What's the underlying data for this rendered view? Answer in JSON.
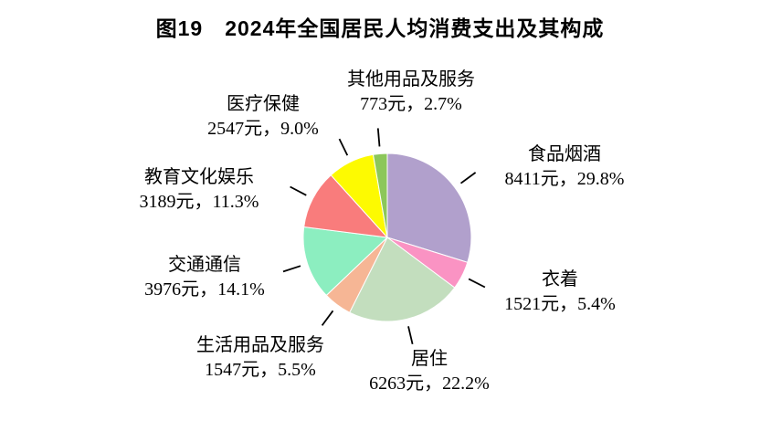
{
  "title": "图19　2024年全国居民人均消费支出及其构成",
  "chart_data": {
    "type": "pie",
    "title": "图19　2024年全国居民人均消费支出及其构成",
    "unit": "元",
    "start_angle_deg": 0,
    "direction": "clockwise",
    "total_percent": 100.0,
    "slices": [
      {
        "key": "food-tobacco-alcohol",
        "name": "食品烟酒",
        "value_yuan": 8411,
        "percent": 29.8,
        "detail": "8411元，29.8%",
        "color": "#b1a0cc"
      },
      {
        "key": "clothing",
        "name": "衣着",
        "value_yuan": 1521,
        "percent": 5.4,
        "detail": "1521元，5.4%",
        "color": "#fa93c3"
      },
      {
        "key": "housing",
        "name": "居住",
        "value_yuan": 6263,
        "percent": 22.2,
        "detail": "6263元，22.2%",
        "color": "#c3debe"
      },
      {
        "key": "household-goods-services",
        "name": "生活用品及服务",
        "value_yuan": 1547,
        "percent": 5.5,
        "detail": "1547元，5.5%",
        "color": "#f6b695"
      },
      {
        "key": "transport-communication",
        "name": "交通通信",
        "value_yuan": 3976,
        "percent": 14.1,
        "detail": "3976元，14.1%",
        "color": "#8ceec0"
      },
      {
        "key": "education-culture-recreation",
        "name": "教育文化娱乐",
        "value_yuan": 3189,
        "percent": 11.3,
        "detail": "3189元，11.3%",
        "color": "#f97c7c"
      },
      {
        "key": "healthcare",
        "name": "医疗保健",
        "value_yuan": 2547,
        "percent": 9.0,
        "detail": "2547元，9.0%",
        "color": "#fdfa01"
      },
      {
        "key": "other-goods-services",
        "name": "其他用品及服务",
        "value_yuan": 773,
        "percent": 2.7,
        "detail": "773元，2.7%",
        "color": "#8cc75a"
      }
    ],
    "leader_line_color": "#000000",
    "slice_border_color": "#ffffff"
  }
}
